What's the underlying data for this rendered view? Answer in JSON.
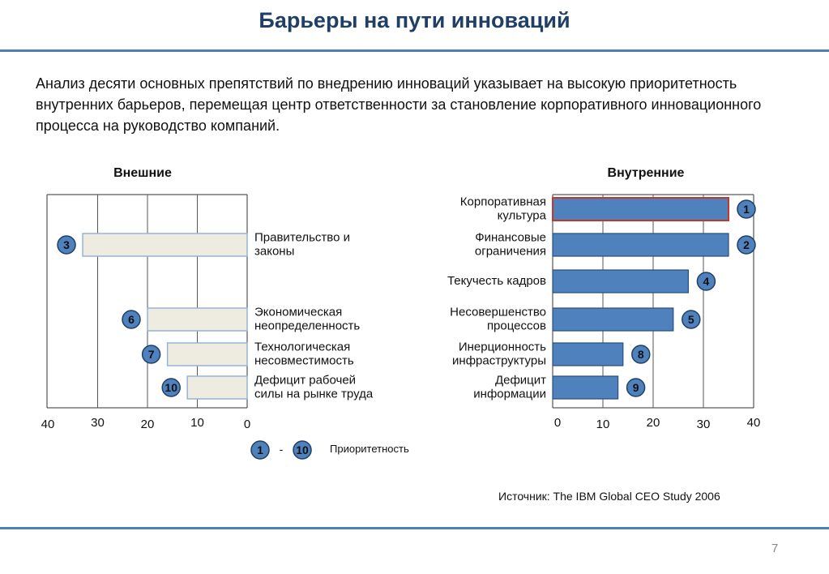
{
  "slide": {
    "title": "Барьеры на пути инноваций",
    "intro": "Анализ десяти основных препятствий по внедрению инноваций указывает на высокую приоритетность внутренних барьеров, перемещая центр ответственности за становление корпоративного инновационного процесса на руководство компаний.",
    "source": "Источник: The IBM Global CEO Study 2006",
    "page_number": "7"
  },
  "legend": {
    "from": "1",
    "dash": "-",
    "to": "10",
    "label": "Приоритетность"
  },
  "colors": {
    "title": "#1f3f66",
    "rule": "#4f7fb8",
    "internal_bar": "#4f81bd",
    "internal_bar_border": "#2a4e7e",
    "external_bar_fill": "#eeece1",
    "external_bar_border": "#95b3d7",
    "highlight_border": "#c0392b",
    "badge": "#4f81bd"
  },
  "chart_data": [
    {
      "type": "bar",
      "orientation": "horizontal",
      "direction": "right-to-left",
      "title": "Внешние",
      "xlim": [
        0,
        40
      ],
      "ticks": [
        "0",
        "10",
        "20",
        "30",
        "40"
      ],
      "tick_values": [
        0,
        10,
        20,
        30,
        40
      ],
      "categories": [
        "Правительство и\nзаконы",
        "Экономическая\nнеопределенность",
        "Технологическая\nнесовместимость",
        "Дефицит рабочей\nсилы на рынке труда"
      ],
      "values": [
        33,
        20,
        16,
        12
      ],
      "ranks": [
        "3",
        "6",
        "7",
        "10"
      ],
      "rows": [
        0,
        2,
        3,
        4
      ],
      "grid": true
    },
    {
      "type": "bar",
      "orientation": "horizontal",
      "direction": "left-to-right",
      "title": "Внутренние",
      "xlim": [
        0,
        40
      ],
      "ticks": [
        "0",
        "10",
        "20",
        "30",
        "40"
      ],
      "tick_values": [
        0,
        10,
        20,
        30,
        40
      ],
      "categories": [
        "Корпоративная\nкультура",
        "Финансовые\nограничения",
        "Текучесть кадров",
        "Несовершенство\nпроцессов",
        "Инерционность\nинфраструктуры",
        "Дефицит\nинформации"
      ],
      "values": [
        35,
        35,
        27,
        24,
        14,
        13
      ],
      "ranks": [
        "1",
        "2",
        "4",
        "5",
        "8",
        "9"
      ],
      "highlight": [
        true,
        false,
        false,
        false,
        false,
        false
      ],
      "grid": true
    }
  ]
}
